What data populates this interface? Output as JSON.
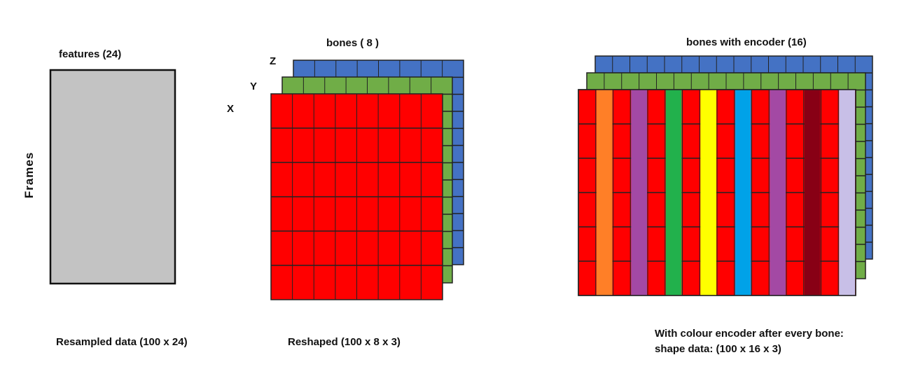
{
  "panel_resampled": {
    "label_top": "features (24)",
    "label_side": "Frames",
    "caption": "Resampled data (100 x 24)",
    "fill_color": "#c3c3c3"
  },
  "panel_reshaped": {
    "label_top": "bones ( 8 )",
    "axis_x": "X",
    "axis_y": "Y",
    "axis_z": "Z",
    "caption": "Reshaped (100 x 8 x 3)",
    "layer_colors": {
      "x": "#ff0000",
      "y": "#70ad47",
      "z": "#4472c4"
    }
  },
  "panel_encoded": {
    "label_top": "bones with encoder (16)",
    "caption_line1": "With colour encoder after every bone:",
    "caption_line2": "shape data: (100 x 16 x 3)",
    "encoder_colors": [
      "#ff7f27",
      "#a349a4",
      "#22b14c",
      "#ffff00",
      "#00a2e8",
      "#a349a4",
      "#880015",
      "#c8bfe7"
    ]
  }
}
